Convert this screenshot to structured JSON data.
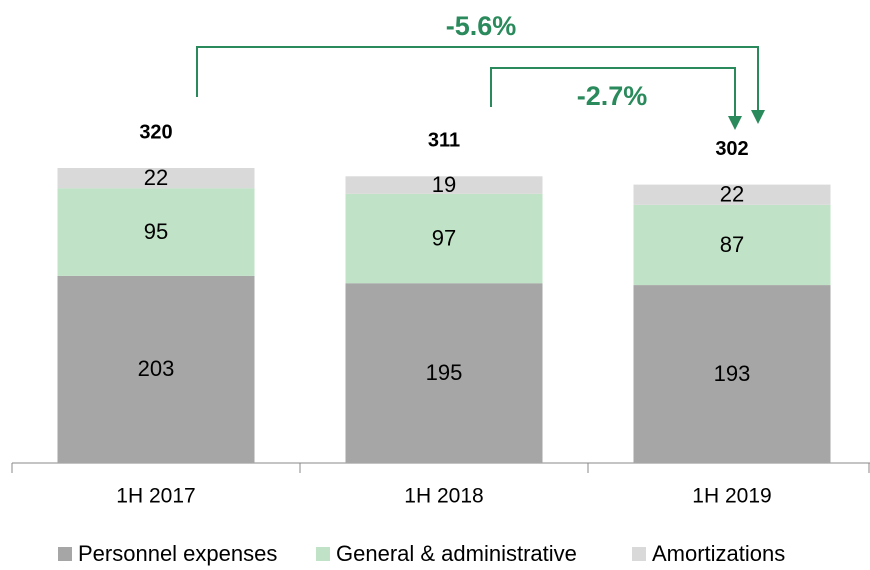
{
  "chart_data": {
    "type": "stacked_bar",
    "categories": [
      "1H 2017",
      "1H 2018",
      "1H 2019"
    ],
    "series": [
      {
        "name": "Personnel expenses",
        "color": "#a6a6a6",
        "values": [
          203,
          195,
          193
        ]
      },
      {
        "name": "General & administrative",
        "color": "#c0e2c6",
        "values": [
          95,
          97,
          87
        ]
      },
      {
        "name": "Amortizations",
        "color": "#d9d9d9",
        "values": [
          22,
          19,
          22
        ]
      }
    ],
    "totals": [
      320,
      311,
      302
    ],
    "annotations": [
      "-5.6%",
      "-2.7%"
    ],
    "legend": "bottom"
  }
}
